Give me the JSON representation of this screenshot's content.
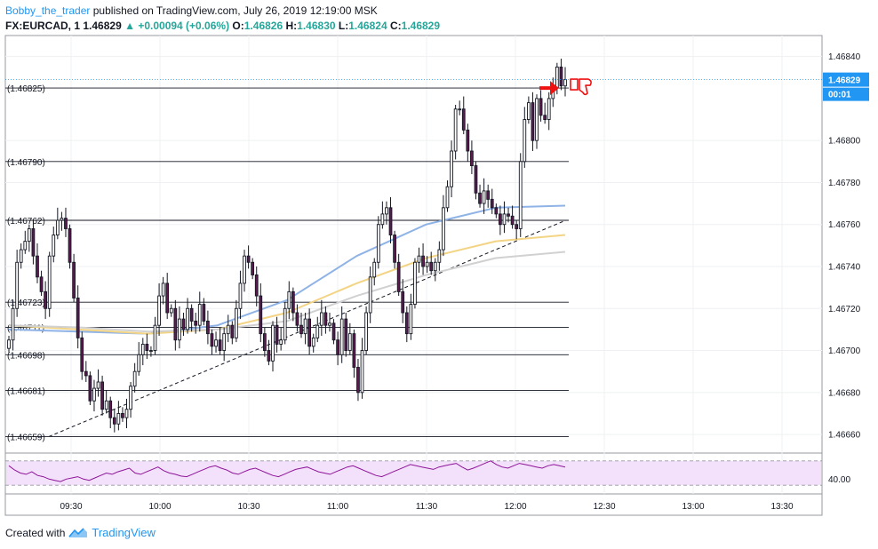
{
  "header": {
    "author": "Bobby_the_trader",
    "published_text": "published on TradingView.com, July 26, 2019 12:19:00 MSK",
    "symbol": "FX:EURCAD, 1",
    "last": "1.46829",
    "change_arrow": "▲",
    "change": "+0.00094 (+0.06%)",
    "o_label": "O:",
    "o_value": "1.46826",
    "h_label": "H:",
    "h_value": "1.46830",
    "l_label": "L:",
    "l_value": "1.46824",
    "c_label": "C:",
    "c_value": "1.46829"
  },
  "footer": {
    "created_with": "Created with",
    "brand": "TradingView",
    "logo_icon": "tradingview-logo-icon"
  },
  "price_badge": {
    "value": "1.46829",
    "countdown": "00:01",
    "partial_tick": "1"
  },
  "colors": {
    "up_body": "#ffffff",
    "down_body": "#5b1a4f",
    "wick": "#131722",
    "ma_fast": "#8fb3e6",
    "ma_mid": "#f2d484",
    "ma_slow": "#d1d1d1",
    "rsi": "#8e1599",
    "rsi_band": "#f3e0fb",
    "badge": "#2196f3",
    "arrow": "#ee1111"
  },
  "chart_data": {
    "type": "candlestick",
    "symbol": "FX:EURCAD",
    "interval": "1",
    "x_ticks": [
      "09:30",
      "10:00",
      "10:30",
      "11:00",
      "11:30",
      "12:00",
      "12:30",
      "13:00",
      "13:30"
    ],
    "y_ticks": [
      "1.46840",
      "1.46800",
      "1.46780",
      "1.46760",
      "1.46740",
      "1.46720",
      "1.46700",
      "1.46680",
      "1.46660"
    ],
    "ylim": [
      1.46652,
      1.4685
    ],
    "last_price": 1.46829,
    "horizontal_levels": [
      {
        "label": "(1.46825)",
        "value": 1.46825
      },
      {
        "label": "(1.46790)",
        "value": 1.4679
      },
      {
        "label": "(1.46762)",
        "value": 1.46762
      },
      {
        "label": "(1.46723)",
        "value": 1.46723
      },
      {
        "label": "(1.46711)",
        "value": 1.46711
      },
      {
        "label": "(1.46698)",
        "value": 1.46698
      },
      {
        "label": "(1.46681)",
        "value": 1.46681
      },
      {
        "label": "(1.46659)",
        "value": 1.46659
      }
    ],
    "trendline": {
      "from": {
        "time": "09:27",
        "price": 1.46659
      },
      "to": {
        "time": "12:17",
        "price": 1.46762
      }
    },
    "candles_close": [
      1.46705,
      1.4672,
      1.46742,
      1.46748,
      1.46752,
      1.46758,
      1.46745,
      1.46735,
      1.46728,
      1.4672,
      1.46745,
      1.46755,
      1.46762,
      1.46763,
      1.46758,
      1.46742,
      1.46725,
      1.46706,
      1.4669,
      1.46688,
      1.46676,
      1.46682,
      1.46685,
      1.46672,
      1.46676,
      1.46668,
      1.46665,
      1.4667,
      1.46668,
      1.46672,
      1.46683,
      1.4669,
      1.46698,
      1.46703,
      1.467,
      1.467,
      1.46712,
      1.46726,
      1.46732,
      1.46718,
      1.4672,
      1.46705,
      1.46715,
      1.4671,
      1.4672,
      1.46714,
      1.46712,
      1.46722,
      1.46714,
      1.46708,
      1.46702,
      1.46705,
      1.467,
      1.46708,
      1.46712,
      1.46706,
      1.4672,
      1.46732,
      1.46745,
      1.46742,
      1.46736,
      1.46726,
      1.46708,
      1.467,
      1.46695,
      1.46712,
      1.46703,
      1.46705,
      1.4672,
      1.46728,
      1.46718,
      1.46712,
      1.46708,
      1.46715,
      1.46702,
      1.46706,
      1.46712,
      1.46718,
      1.46712,
      1.46713,
      1.46705,
      1.46698,
      1.46715,
      1.467,
      1.46708,
      1.46692,
      1.4668,
      1.467,
      1.46718,
      1.46735,
      1.46742,
      1.4676,
      1.46765,
      1.46768,
      1.46755,
      1.46742,
      1.46728,
      1.46718,
      1.46708,
      1.46722,
      1.46742,
      1.46745,
      1.4674,
      1.46742,
      1.46738,
      1.46742,
      1.46748,
      1.46768,
      1.46778,
      1.46795,
      1.46815,
      1.46815,
      1.46805,
      1.46795,
      1.46788,
      1.46775,
      1.4677,
      1.46776,
      1.46772,
      1.46768,
      1.46765,
      1.4676,
      1.46765,
      1.46764,
      1.4676,
      1.46758,
      1.4679,
      1.4681,
      1.46818,
      1.468,
      1.4682,
      1.46812,
      1.4681,
      1.4682,
      1.46825,
      1.46835,
      1.46826,
      1.46829
    ],
    "moving_averages": [
      {
        "color": "fast",
        "values": [
          1.4671,
          1.46709,
          1.46708,
          1.46712,
          1.46724,
          1.46745,
          1.4676,
          1.46768,
          1.46769
        ]
      },
      {
        "color": "mid",
        "values": [
          1.46712,
          1.4671,
          1.46708,
          1.4671,
          1.46718,
          1.46732,
          1.46744,
          1.46752,
          1.46755
        ]
      },
      {
        "color": "slow",
        "values": [
          1.46712,
          1.46711,
          1.46709,
          1.4671,
          1.46714,
          1.46726,
          1.46736,
          1.46744,
          1.46747
        ]
      }
    ],
    "rsi_ticks": [
      "40.00"
    ],
    "rsi_band": [
      30,
      70
    ],
    "rsi_values": [
      62,
      55,
      50,
      48,
      52,
      46,
      44,
      40,
      38,
      36,
      40,
      42,
      44,
      40,
      38,
      42,
      46,
      50,
      48,
      52,
      55,
      58,
      50,
      48,
      52,
      56,
      60,
      54,
      50,
      48,
      45,
      44,
      48,
      52,
      56,
      60,
      62,
      58,
      55,
      50,
      48,
      52,
      56,
      58,
      54,
      50,
      46,
      44,
      48,
      52,
      56,
      58,
      60,
      56,
      52,
      50,
      48,
      52,
      56,
      60,
      62,
      58,
      54,
      50,
      46,
      44,
      48,
      52,
      56,
      60,
      64,
      62,
      60,
      58,
      56,
      60,
      62,
      64,
      66,
      60,
      55,
      58,
      62,
      66,
      70,
      64,
      60,
      58,
      62,
      66,
      64,
      62,
      60,
      58,
      62,
      64,
      62,
      60
    ]
  }
}
